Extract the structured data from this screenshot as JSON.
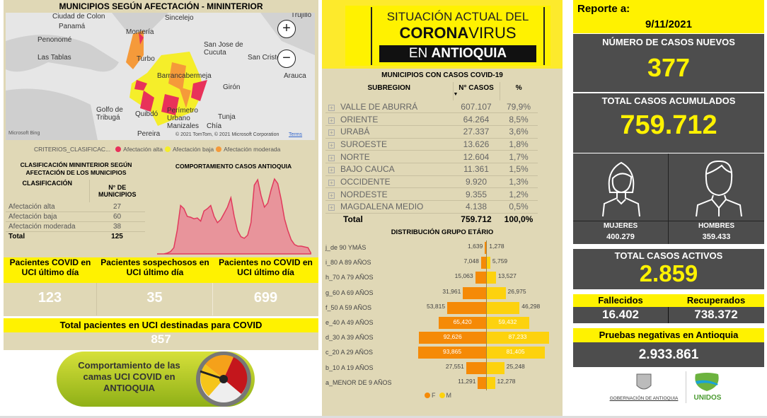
{
  "map": {
    "title": "MUNICIPIOS SEGÚN AFECTACIÓN - MININTERIOR",
    "places": [
      "Ciudad de Colon",
      "Panamá",
      "Penonomé",
      "Las Tablas",
      "Montería",
      "Turbo",
      "Sincelejo",
      "San Jose de Cucuta",
      "San Cristób",
      "Arauca",
      "Girón",
      "Barrancabermeja",
      "Golfo de Tribugá",
      "Quibdó",
      "Perímetro Urbano Manizales",
      "Tunja",
      "Pereira",
      "Chía",
      "Trujillo"
    ],
    "attribution": "© 2021 TomTom, © 2021 Microsoft Corporation",
    "terms": "Terms",
    "bing": "Microsoft Bing",
    "zoom_in": "+",
    "zoom_out": "−",
    "legend": {
      "title": "CRITERIOS_CLASIFICAC...",
      "items": [
        {
          "label": "Afectación alta",
          "color": "#e8325a"
        },
        {
          "label": "Afectación baja",
          "color": "#f5ee2a"
        },
        {
          "label": "Afectación moderada",
          "color": "#f59a3a"
        }
      ]
    }
  },
  "clasificacion": {
    "title": "CLASIFICACIÓN MININTERIOR SEGÚN AFECTACIÓN DE LOS MUNICIPIOS",
    "headers": [
      "CLASIFICACIÓN",
      "N° DE MUNICIPIOS"
    ],
    "rows": [
      [
        "Afectación alta",
        "27"
      ],
      [
        "Afectación baja",
        "60"
      ],
      [
        "Afectación moderada",
        "38"
      ]
    ],
    "total": [
      "Total",
      "125"
    ]
  },
  "chart_data": {
    "type": "area",
    "title": "COMPORTAMIENTO CASOS ANTIOQUIA",
    "series": [
      {
        "values": [
          0,
          0,
          0,
          1,
          3,
          8,
          30,
          62,
          58,
          48,
          47,
          45,
          46,
          42,
          55,
          58,
          62,
          48,
          40,
          44,
          52,
          60,
          72,
          48,
          30,
          22,
          20,
          24,
          40,
          88,
          95,
          75,
          60,
          65,
          82,
          96,
          90,
          70,
          45,
          30,
          18,
          12,
          10,
          10,
          9,
          8,
          0
        ],
        "color": "#e03a5c"
      }
    ]
  },
  "uci": {
    "cols": [
      {
        "label": "Pacientes COVID en UCI último día",
        "value": "123"
      },
      {
        "label": "Pacientes sospechosos en UCI último día",
        "value": "35"
      },
      {
        "label": "Pacientes no COVID en UCI último día",
        "value": "699"
      }
    ],
    "total_label": "Total pacientes en UCI destinadas para COVID",
    "total_value": "857",
    "banner": "Comportamiento de las camas UCI COVID en ANTIOQUIA"
  },
  "header": {
    "line1": "SITUACIÓN ACTUAL DEL",
    "line2a": "CORONA",
    "line2b": "VIRUS",
    "line3a": "EN ",
    "line3b": "ANTIOQUIA"
  },
  "subregion": {
    "title": "MUNICIPIOS CON CASOS COVID-19",
    "headers": [
      "SUBREGION",
      "N° CASOS",
      "%"
    ],
    "rows": [
      [
        "VALLE DE ABURRÁ",
        "607.107",
        "79,9%"
      ],
      [
        "ORIENTE",
        "64.264",
        "8,5%"
      ],
      [
        "URABÁ",
        "27.337",
        "3,6%"
      ],
      [
        "SUROESTE",
        "13.626",
        "1,8%"
      ],
      [
        "NORTE",
        "12.604",
        "1,7%"
      ],
      [
        "BAJO CAUCA",
        "11.361",
        "1,5%"
      ],
      [
        "OCCIDENTE",
        "9.920",
        "1,3%"
      ],
      [
        "NORDESTE",
        "9.355",
        "1,2%"
      ],
      [
        "MAGDALENA MEDIO",
        "4.138",
        "0,5%"
      ]
    ],
    "total": [
      "Total",
      "759.712",
      "100,0%"
    ]
  },
  "piramide": {
    "title": "DISTRIBUCIÓN GRUPO ETÁRIO",
    "legend": [
      {
        "label": "F",
        "color": "#f58a07"
      },
      {
        "label": "M",
        "color": "#fdd20e"
      }
    ],
    "rows": [
      {
        "label": "j_de 90 YMÁS",
        "f": 1639,
        "m": 1278,
        "fl": "1,639",
        "ml": "1,278"
      },
      {
        "label": "i_80 A 89 AÑOS",
        "f": 7048,
        "m": 5759,
        "fl": "7,048",
        "ml": "5,759"
      },
      {
        "label": "h_70 A 79 AÑOS",
        "f": 15063,
        "m": 13527,
        "fl": "15,063",
        "ml": "13,527"
      },
      {
        "label": "g_60 A 69 AÑOS",
        "f": 31961,
        "m": 26975,
        "fl": "31,961",
        "ml": "26,975"
      },
      {
        "label": "f_50 A 59 AÑOS",
        "f": 53815,
        "m": 46298,
        "fl": "53,815",
        "ml": "46,298"
      },
      {
        "label": "e_40 A 49 AÑOS",
        "f": 65420,
        "m": 59432,
        "fl": "65,420",
        "ml": "59,432"
      },
      {
        "label": "d_30 A 39 AÑOS",
        "f": 92626,
        "m": 87233,
        "fl": "92,626",
        "ml": "87,233"
      },
      {
        "label": "c_20 A 29 AÑOS",
        "f": 93865,
        "m": 81405,
        "fl": "93,865",
        "ml": "81,405"
      },
      {
        "label": "b_10 A 19 AÑOS",
        "f": 27551,
        "m": 25248,
        "fl": "27,551",
        "ml": "25,248"
      },
      {
        "label": "a_MENOR DE 9 AÑOS",
        "f": 11291,
        "m": 12278,
        "fl": "11,291",
        "ml": "12,278"
      }
    ]
  },
  "reporte": {
    "label": "Reporte a:",
    "date": "9/11/2021"
  },
  "nuevos": {
    "label": "NÚMERO DE CASOS NUEVOS",
    "value": "377"
  },
  "acumulados": {
    "label": "TOTAL CASOS ACUMULADOS",
    "value": "759.712"
  },
  "genero": {
    "mujeres_label": "MUJERES",
    "mujeres": "400.279",
    "hombres_label": "HOMBRES",
    "hombres": "359.433"
  },
  "activos": {
    "label": "TOTAL CASOS ACTIVOS",
    "value": "2.859"
  },
  "fallecidos": {
    "label": "Fallecidos",
    "value": "16.402"
  },
  "recuperados": {
    "label": "Recuperados",
    "value": "738.372"
  },
  "pruebas": {
    "label": "Pruebas negativas en Antioquia",
    "value": "2.933.861"
  },
  "logos": {
    "gob": "GOBERNACIÓN DE ANTIOQUIA",
    "unidos": "UNIDOS"
  }
}
